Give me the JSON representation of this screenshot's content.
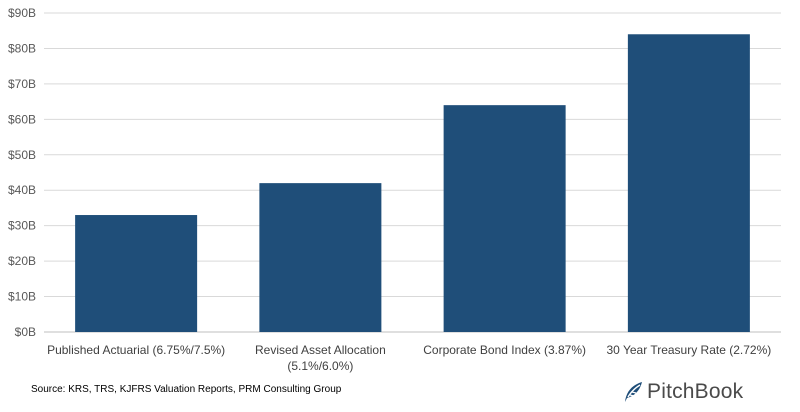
{
  "chart_data": {
    "type": "bar",
    "title": "",
    "xlabel": "",
    "ylabel": "",
    "categories": [
      [
        "Published Actuarial (6.75%/7.5%)"
      ],
      [
        "Revised Asset Allocation",
        "(5.1%/6.0%)"
      ],
      [
        "Corporate Bond Index (3.87%)"
      ],
      [
        "30 Year Treasury Rate (2.72%)"
      ]
    ],
    "values": [
      33,
      42,
      64,
      84
    ],
    "ylim": [
      0,
      90
    ],
    "yticks": [
      "$0B",
      "$10B",
      "$20B",
      "$30B",
      "$40B",
      "$50B",
      "$60B",
      "$70B",
      "$80B",
      "$90B"
    ],
    "grid": true,
    "bar_color": "#1f4e79"
  },
  "footer": {
    "source": "Source: KRS, TRS, KJFRS Valuation Reports, PRM Consulting Group",
    "brand": "PitchBook"
  }
}
